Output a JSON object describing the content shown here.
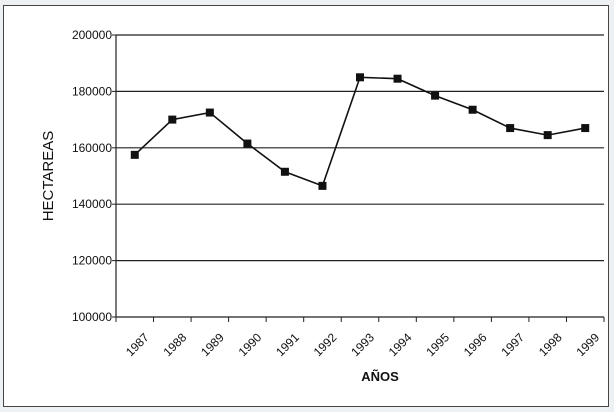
{
  "chart_data": {
    "type": "line",
    "title": "",
    "xlabel": "AÑOS",
    "ylabel": "HECTAREAS",
    "categories": [
      "1987",
      "1988",
      "1989",
      "1990",
      "1991",
      "1992",
      "1993",
      "1994",
      "1995",
      "1996",
      "1997",
      "1998",
      "1999"
    ],
    "series": [
      {
        "values": [
          157500,
          170000,
          172500,
          161500,
          151500,
          146500,
          185000,
          184500,
          178500,
          173500,
          167000,
          164500,
          167000
        ],
        "color": "#111111",
        "marker": "square"
      }
    ],
    "ylim": [
      100000,
      200000
    ],
    "yticks": [
      "100000",
      "120000",
      "140000",
      "160000",
      "180000",
      "200000"
    ],
    "grid": "horizontal",
    "legend": "none"
  }
}
